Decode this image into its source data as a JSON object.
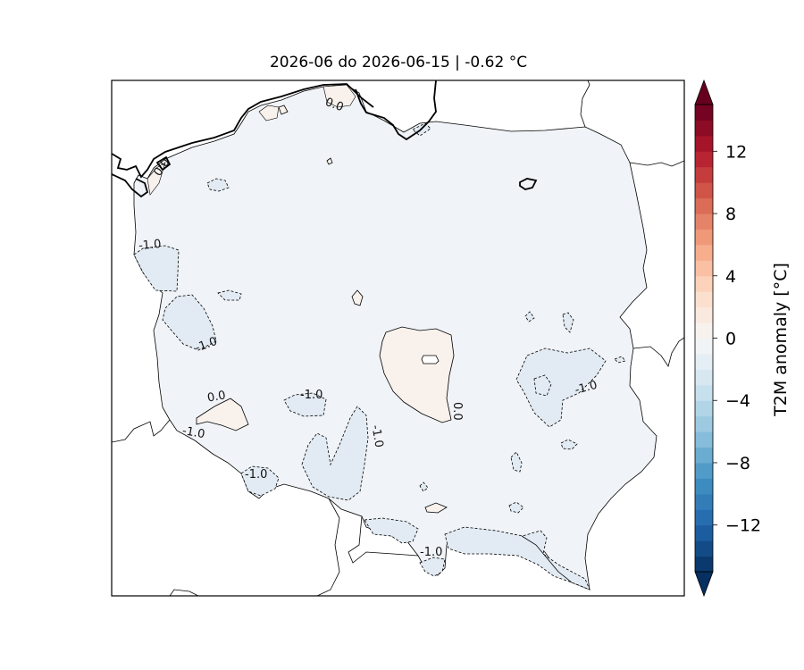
{
  "map": {
    "title": "2026-06 do 2026-06-15 | -0.62 °C",
    "colorbar": {
      "label": "T2M anomaly [°C]",
      "range": [
        -15,
        15
      ],
      "step": 1,
      "ticks": [
        "12",
        "8",
        "4",
        "0",
        "−4",
        "−8",
        "−12"
      ],
      "tick_values": [
        12,
        8,
        4,
        0,
        -4,
        -8,
        -12
      ],
      "colormap": "RdBu_r"
    },
    "contour_labels": [
      "0.0",
      "0.0",
      "-1.0",
      "-1.0",
      "0.0",
      "-1.0",
      "-1.0",
      "-1.0",
      "-1.0",
      "-1.0",
      "0.0",
      "-1.0",
      "-1.0"
    ],
    "colors": {
      "background_fill": "#f0f3f7",
      "warm_patch": "#f8f1ec",
      "cool_patch": "#e2ebf3",
      "cool_patch_deep": "#d2e2ee"
    }
  }
}
